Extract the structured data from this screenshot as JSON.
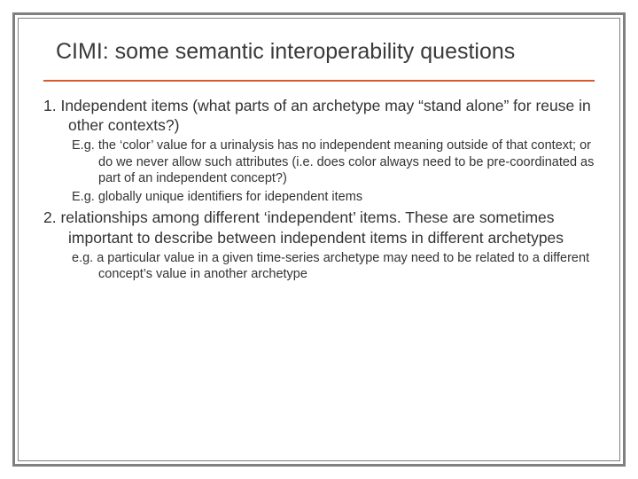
{
  "title": "CIMI: some semantic interoperability questions",
  "colors": {
    "rule": "#d85a2a",
    "frame": "#808080",
    "text": "#333333",
    "background": "#ffffff"
  },
  "typography": {
    "title_fontsize_pt": 19,
    "main_fontsize_pt": 13,
    "sub_fontsize_pt": 11,
    "font_family": "Verdana"
  },
  "items": [
    {
      "main": "1. Independent items (what parts of an archetype may “stand alone” for reuse in other contexts?)",
      "subs": [
        "E.g. the ‘color’ value for a urinalysis has no independent meaning outside of that context; or do we never allow such attributes (i.e. does color always need to be pre-coordinated as part of an independent concept?)",
        "E.g. globally unique identifiers for idependent items"
      ]
    },
    {
      "main": "2. relationships among different ‘independent’ items. These are sometimes important to describe between independent items in different  archetypes",
      "subs": [
        "e.g. a particular value in a given time-series archetype may need to be related to a different concept’s value in another archetype"
      ]
    }
  ]
}
